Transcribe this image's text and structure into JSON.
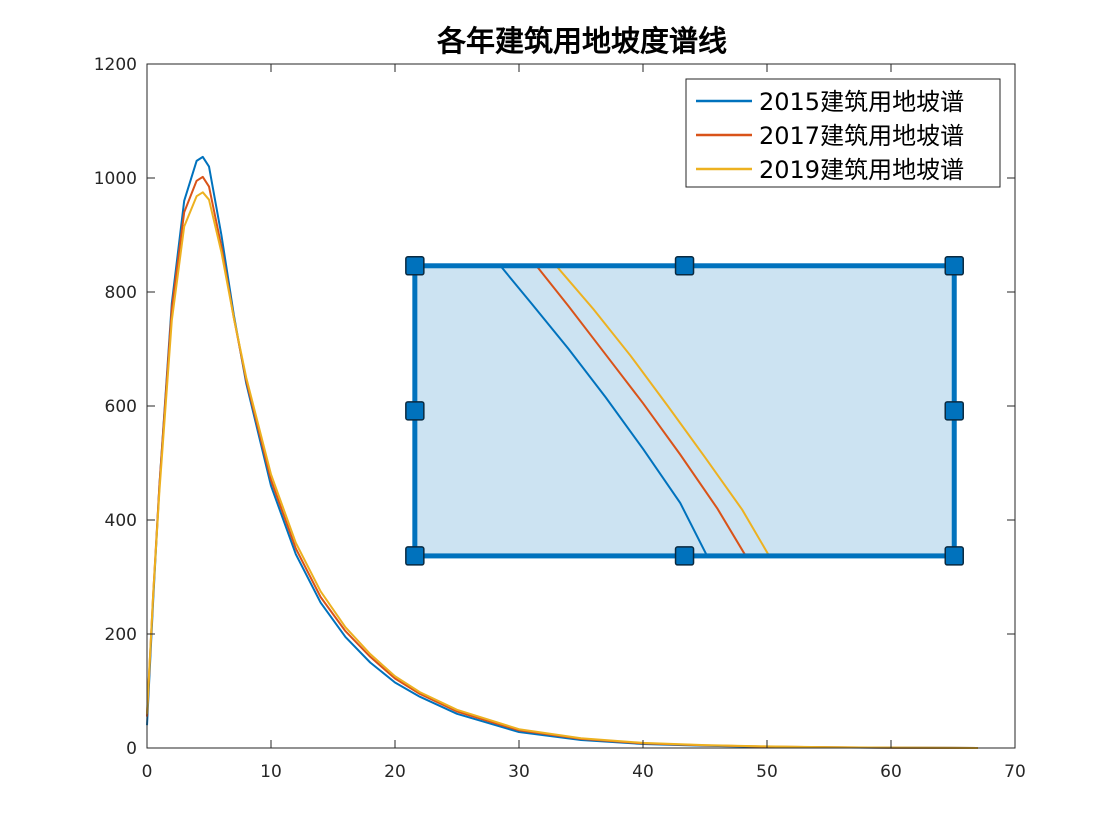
{
  "chart_data": {
    "type": "line",
    "title": "各年建筑用地坡度谱线",
    "xlabel": "",
    "ylabel": "",
    "xlim": [
      0,
      70
    ],
    "ylim": [
      0,
      1200
    ],
    "xticks": [
      0,
      10,
      20,
      30,
      40,
      50,
      60,
      70
    ],
    "yticks": [
      0,
      200,
      400,
      600,
      800,
      1000,
      1200
    ],
    "grid": false,
    "legend_position": "top-right",
    "series": [
      {
        "name": "2015建筑用地坡谱",
        "color": "#0072BD",
        "x": [
          0,
          0.5,
          1,
          2,
          3,
          4,
          4.5,
          5,
          6,
          7,
          8,
          10,
          12,
          14,
          16,
          18,
          20,
          22,
          25,
          30,
          35,
          40,
          45,
          50,
          55,
          60,
          65,
          67
        ],
        "y": [
          40,
          260,
          460,
          780,
          960,
          1030,
          1037,
          1020,
          900,
          760,
          640,
          460,
          340,
          255,
          195,
          150,
          115,
          90,
          60,
          28,
          14,
          7,
          4,
          2,
          1,
          0.5,
          0.2,
          0
        ]
      },
      {
        "name": "2017建筑用地坡谱",
        "color": "#D95319",
        "x": [
          0,
          0.5,
          1,
          2,
          3,
          4,
          4.5,
          5,
          6,
          7,
          8,
          10,
          12,
          14,
          16,
          18,
          20,
          22,
          25,
          30,
          35,
          40,
          45,
          50,
          55,
          60,
          65,
          67
        ],
        "y": [
          55,
          270,
          460,
          770,
          940,
          995,
          1002,
          985,
          880,
          755,
          645,
          470,
          350,
          265,
          205,
          160,
          122,
          95,
          64,
          31,
          16,
          8,
          4.5,
          2.5,
          1.2,
          0.6,
          0.2,
          0
        ]
      },
      {
        "name": "2019建筑用地坡谱",
        "color": "#EDB120",
        "x": [
          0,
          0.5,
          1,
          2,
          3,
          4,
          4.5,
          5,
          6,
          7,
          8,
          10,
          12,
          14,
          16,
          18,
          20,
          22,
          25,
          30,
          35,
          40,
          45,
          50,
          55,
          60,
          65,
          67
        ],
        "y": [
          60,
          270,
          450,
          750,
          915,
          968,
          975,
          962,
          870,
          755,
          650,
          480,
          360,
          275,
          212,
          165,
          126,
          98,
          67,
          33,
          17,
          9,
          5,
          2.8,
          1.4,
          0.7,
          0.2,
          0
        ]
      }
    ],
    "zoom_box": {
      "fill": "#CCE3F2",
      "edge": "#0072BD",
      "handle_fill": "#0072BD",
      "x_range": [
        21.6,
        65.1
      ],
      "y_range": [
        337,
        846
      ],
      "series_segments": [
        {
          "color": "#0072BD",
          "x": [
            28.5,
            31,
            34,
            37,
            40,
            43,
            45.1
          ],
          "y": [
            846,
            780,
            700,
            615,
            525,
            430,
            340
          ]
        },
        {
          "color": "#D95319",
          "x": [
            31.4,
            34,
            37,
            40,
            43,
            46,
            48.2
          ],
          "y": [
            846,
            775,
            690,
            605,
            515,
            420,
            340
          ]
        },
        {
          "color": "#EDB120",
          "x": [
            33.0,
            36,
            39,
            42,
            45,
            48,
            50.1
          ],
          "y": [
            846,
            770,
            688,
            600,
            510,
            418,
            340
          ]
        }
      ]
    }
  }
}
